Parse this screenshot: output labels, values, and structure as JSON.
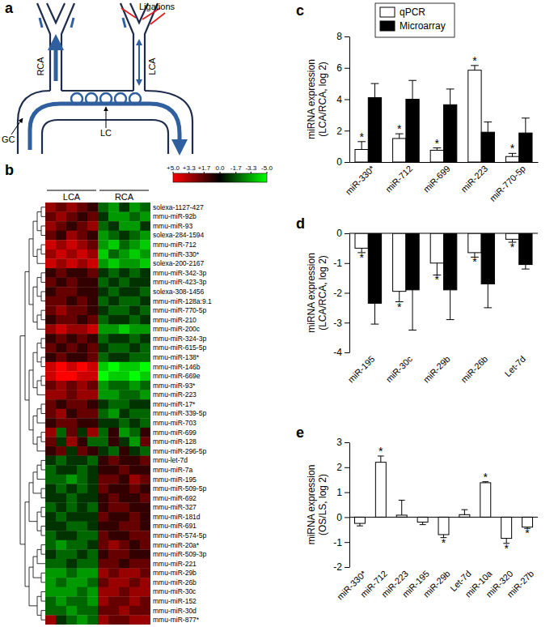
{
  "diagram": {
    "title": "a",
    "labels": {
      "ligations": "Ligations",
      "rca": "RCA",
      "lca": "LCA",
      "gc": "GC",
      "lc": "LC"
    }
  },
  "chart_data": [
    {
      "type": "heatmap",
      "title": "b",
      "groups": [
        "LCA",
        "RCA"
      ],
      "rows": [
        "solexa-1127-427",
        "mmu-miR-92b",
        "mmu-miR-93",
        "solexa-284-1594",
        "mmu-miR-712",
        "mmu-miR-330*",
        "solexa-200-2167",
        "mmu-miR-342-3p",
        "mmu-miR-423-3p",
        "solexa-308-1456",
        "mmu-miR-128a:9.1",
        "mmu-miR-770-5p",
        "mmu-miR-210",
        "mmu-miR-200c",
        "mmu-miR-324-3p",
        "mmu-miR-615-5p",
        "mmu-miR-138*",
        "mmu-miR-146b",
        "mmu-miR-669e",
        "mmu-miR-93*",
        "mmu-miR-223",
        "mmu-miR-17*",
        "mmu-miR-339-5p",
        "mmu-miR-703",
        "mmu-miR-699",
        "mmu-miR-128",
        "mmu-miR-296-5p",
        "mmu-let-7d",
        "mmu-miR-7a",
        "mmu-miR-195",
        "mmu-miR-509-5p",
        "mmu-miR-692",
        "mmu-miR-327",
        "mmu-miR-181d",
        "mmu-miR-691",
        "mmu-miR-574-5p",
        "mmu-miR-20a*",
        "mmu-miR-509-3p",
        "mmu-miR-221",
        "mmu-miR-29b",
        "mmu-miR-26b",
        "mmu-miR-30c",
        "mmu-miR-152",
        "mmu-miR-30d",
        "mmu-miR-877*"
      ],
      "cells": [
        [
          3,
          2,
          3,
          2,
          1,
          -2,
          -3,
          -1,
          -3,
          -2
        ],
        [
          2,
          3,
          2,
          1,
          2,
          -1,
          -3,
          -3,
          -2,
          -3
        ],
        [
          3,
          2,
          1,
          2,
          3,
          -2,
          -1,
          -3,
          -3,
          -1
        ],
        [
          2,
          1,
          3,
          2,
          1,
          -3,
          -2,
          -1,
          -2,
          -3
        ],
        [
          4,
          3,
          4,
          3,
          2,
          -3,
          -4,
          -2,
          -3,
          -4
        ],
        [
          3,
          4,
          3,
          4,
          3,
          -4,
          -2,
          -3,
          -4,
          -3
        ],
        [
          4,
          3,
          4,
          3,
          4,
          -3,
          -4,
          -3,
          -3,
          -4
        ],
        [
          1,
          2,
          1,
          1,
          2,
          -1,
          -2,
          -1,
          -2,
          -1
        ],
        [
          2,
          1,
          2,
          1,
          1,
          -2,
          -1,
          -2,
          -1,
          -1
        ],
        [
          1,
          2,
          2,
          1,
          1,
          -1,
          -2,
          -1,
          -1,
          -2
        ],
        [
          2,
          2,
          1,
          2,
          1,
          -2,
          -1,
          -2,
          -2,
          -1
        ],
        [
          2,
          3,
          2,
          2,
          1,
          -1,
          -2,
          -2,
          -1,
          -2
        ],
        [
          1,
          2,
          2,
          1,
          2,
          -2,
          -1,
          -1,
          -2,
          -1
        ],
        [
          3,
          4,
          3,
          3,
          4,
          -3,
          -3,
          -4,
          -3,
          -3
        ],
        [
          1,
          2,
          1,
          2,
          1,
          -2,
          -1,
          -1,
          -2,
          -1
        ],
        [
          2,
          1,
          2,
          1,
          2,
          -1,
          -2,
          -2,
          -1,
          -2
        ],
        [
          1,
          2,
          1,
          1,
          2,
          -2,
          -1,
          -1,
          -2,
          -2
        ],
        [
          4,
          5,
          4,
          5,
          4,
          -4,
          -5,
          -4,
          -4,
          -5
        ],
        [
          4,
          5,
          5,
          4,
          4,
          -5,
          -4,
          -4,
          -5,
          -4
        ],
        [
          2,
          3,
          2,
          3,
          2,
          -3,
          -2,
          -2,
          -3,
          -2
        ],
        [
          3,
          3,
          2,
          3,
          3,
          -3,
          -3,
          -2,
          -2,
          -3
        ],
        [
          2,
          1,
          2,
          2,
          1,
          -1,
          -2,
          -2,
          -1,
          -1
        ],
        [
          2,
          3,
          1,
          2,
          2,
          -2,
          -3,
          -1,
          -2,
          -2
        ],
        [
          1,
          2,
          2,
          1,
          1,
          -1,
          -1,
          -2,
          -1,
          -2
        ],
        [
          3,
          -2,
          2,
          -1,
          3,
          -2,
          1,
          -3,
          -2,
          1
        ],
        [
          2,
          -1,
          3,
          1,
          -2,
          -2,
          1,
          -1,
          -3,
          2
        ],
        [
          1,
          2,
          -1,
          2,
          1,
          -1,
          -2,
          1,
          -1,
          -2
        ],
        [
          -1,
          -2,
          -1,
          -1,
          -2,
          1,
          2,
          1,
          1,
          2
        ],
        [
          -2,
          -1,
          -1,
          -2,
          -1,
          1,
          1,
          2,
          1,
          1
        ],
        [
          -2,
          -2,
          -3,
          -2,
          -1,
          2,
          2,
          1,
          3,
          2
        ],
        [
          -1,
          -2,
          -1,
          -2,
          -1,
          2,
          1,
          1,
          2,
          1
        ],
        [
          -1,
          -1,
          -2,
          -1,
          -1,
          1,
          2,
          1,
          1,
          2
        ],
        [
          -2,
          -1,
          -2,
          -1,
          -2,
          1,
          2,
          2,
          1,
          1
        ],
        [
          -1,
          -2,
          -1,
          -1,
          -1,
          2,
          1,
          1,
          2,
          1
        ],
        [
          -1,
          -1,
          -2,
          -2,
          -1,
          1,
          1,
          2,
          2,
          1
        ],
        [
          -2,
          -1,
          -1,
          -2,
          -2,
          2,
          1,
          1,
          2,
          2
        ],
        [
          -2,
          -3,
          -2,
          -2,
          -1,
          2,
          3,
          2,
          1,
          2
        ],
        [
          -1,
          -2,
          -2,
          -1,
          -2,
          1,
          2,
          2,
          1,
          1
        ],
        [
          -2,
          -2,
          -1,
          -2,
          -2,
          2,
          2,
          1,
          2,
          2
        ],
        [
          -3,
          -3,
          -2,
          -3,
          -3,
          3,
          2,
          3,
          3,
          2
        ],
        [
          -3,
          -2,
          -3,
          -3,
          -2,
          2,
          3,
          3,
          2,
          3
        ],
        [
          -3,
          -3,
          -3,
          -2,
          -3,
          3,
          3,
          2,
          3,
          3
        ],
        [
          -2,
          -3,
          -2,
          -2,
          -3,
          3,
          2,
          2,
          3,
          2
        ],
        [
          -2,
          -2,
          -3,
          -2,
          -2,
          2,
          2,
          3,
          2,
          2
        ],
        [
          3,
          -1,
          -2,
          -3,
          -2,
          3,
          2,
          2,
          3,
          3
        ]
      ],
      "colors": [
        "#00ff00",
        "#000000",
        "#ff0000"
      ],
      "colorbar": {
        "range": [
          -5,
          5
        ],
        "ticks": [
          {
            "value": 5,
            "label": "+5.0"
          },
          {
            "value": 3.3,
            "label": "+3.3"
          },
          {
            "value": 1.7,
            "label": "+1.7"
          },
          {
            "value": 0,
            "label": "0.0"
          },
          {
            "value": -1.7,
            "label": "-1.7"
          },
          {
            "value": -3.3,
            "label": "-3.3"
          },
          {
            "value": -5,
            "label": "-5.0"
          }
        ]
      }
    },
    {
      "type": "bar",
      "title": "c",
      "y_label": [
        "miRNA expression",
        "(LCA/RCA, log 2)"
      ],
      "categories": [
        "miR-330*",
        "miR-712",
        "miR-699",
        "miR-223",
        "miR-770-5p"
      ],
      "series": [
        {
          "name": "qPCR",
          "color": "#ffffff",
          "values": [
            0.8,
            1.5,
            0.75,
            5.85,
            0.35
          ],
          "errors": [
            0.5,
            0.3,
            0.15,
            0.3,
            0.2
          ],
          "annotations": [
            "*",
            "*",
            "*",
            "*",
            "*"
          ]
        },
        {
          "name": "Microarray",
          "color": "#000000",
          "values": [
            4.1,
            4.0,
            3.65,
            1.9,
            1.85
          ],
          "errors": [
            0.9,
            1.2,
            1.0,
            0.65,
            0.95
          ]
        }
      ],
      "ylim": [
        0,
        8
      ],
      "yticks": [
        0,
        2,
        4,
        6,
        8
      ],
      "legend": "top"
    },
    {
      "type": "bar",
      "title": "d",
      "y_label": [
        "miRNA expression",
        "(LCA/RCA, log 2)"
      ],
      "categories": [
        "miR-195",
        "miR-30c",
        "miR-29b",
        "miR-26b",
        "Let-7d"
      ],
      "series": [
        {
          "color": "#ffffff",
          "values": [
            -0.5,
            -1.95,
            -1.0,
            -0.65,
            -0.2
          ],
          "errors": [
            0.15,
            0.35,
            0.4,
            0.15,
            0.1
          ],
          "annotations": [
            "*",
            "*",
            "*",
            "*",
            "*"
          ]
        },
        {
          "color": "#000000",
          "values": [
            -2.35,
            -1.9,
            -1.9,
            -1.7,
            -1.05
          ],
          "errors": [
            0.7,
            1.35,
            1.0,
            0.8,
            0.15
          ]
        }
      ],
      "ylim": [
        -4,
        0
      ],
      "yticks": [
        -4,
        -3,
        -2,
        -1,
        0
      ]
    },
    {
      "type": "bar",
      "title": "e",
      "y_label": [
        "miRNA expression",
        "(OS/LS, log 2)"
      ],
      "categories": [
        "miR-330*",
        "miR-712",
        "miR-223",
        "miR-195",
        "miR-29b",
        "Let-7d",
        "miR-10a",
        "miR-320",
        "miR-27b"
      ],
      "series": [
        {
          "color": "#ffffff",
          "values": [
            -0.25,
            2.2,
            0.08,
            -0.2,
            -0.7,
            0.1,
            1.38,
            -0.85,
            -0.4
          ],
          "errors": [
            0.1,
            0.25,
            0.6,
            0.1,
            0.12,
            0.2,
            0.04,
            0.2,
            0.05
          ],
          "annotations": [
            null,
            "*",
            null,
            null,
            "*",
            null,
            "*",
            "*",
            "*"
          ]
        }
      ],
      "ylim": [
        -2,
        3
      ],
      "yticks": [
        -2,
        -1,
        0,
        1,
        2,
        3
      ]
    }
  ]
}
